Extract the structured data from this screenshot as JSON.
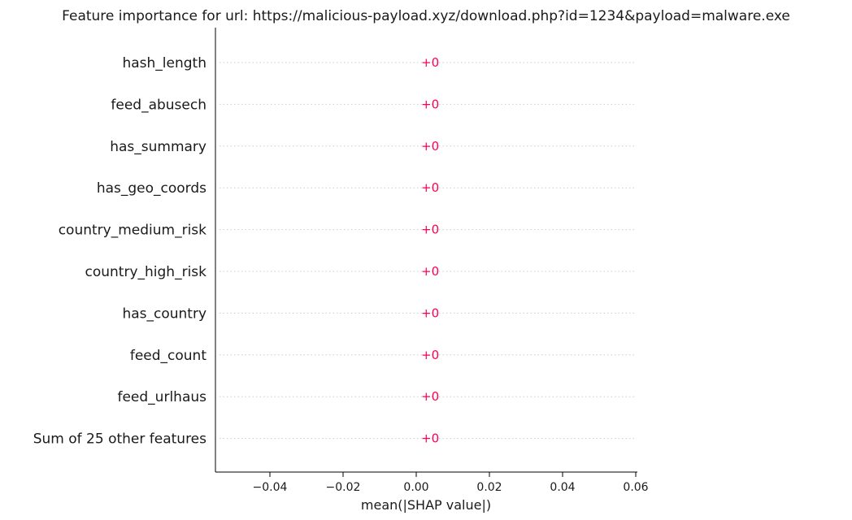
{
  "chart_data": {
    "type": "bar",
    "title": "Feature importance for url: https://malicious-payload.xyz/download.php?id=1234&payload=malware.exe",
    "xlabel": "mean(|SHAP value|)",
    "ylabel": "",
    "categories": [
      "hash_length",
      "feed_abusech",
      "has_summary",
      "has_geo_coords",
      "country_medium_risk",
      "country_high_risk",
      "has_country",
      "feed_count",
      "feed_urlhaus",
      "Sum of 25 other features"
    ],
    "values": [
      0,
      0,
      0,
      0,
      0,
      0,
      0,
      0,
      0,
      0
    ],
    "value_labels": [
      "+0",
      "+0",
      "+0",
      "+0",
      "+0",
      "+0",
      "+0",
      "+0",
      "+0",
      "+0"
    ],
    "xlim": [
      -0.055,
      0.06
    ],
    "xticks": [
      -0.04,
      -0.02,
      0.0,
      0.02,
      0.04,
      0.06
    ],
    "xtick_labels": [
      "−0.04",
      "−0.02",
      "0.00",
      "0.02",
      "0.04",
      "0.06"
    ],
    "orientation": "horizontal",
    "grid": "dotted horizontal row guides",
    "colors": {
      "bar": "#ff0051",
      "text": "#1a1a1a",
      "axis": "#000000",
      "guide": "#cccccc"
    }
  }
}
